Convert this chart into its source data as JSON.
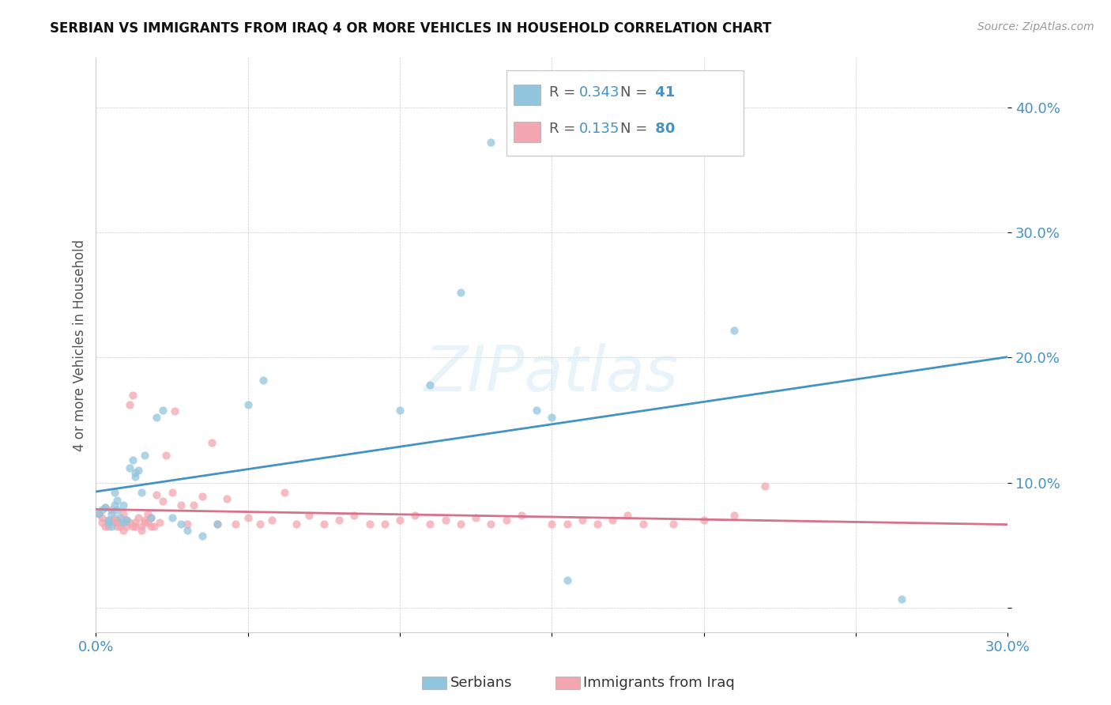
{
  "title": "SERBIAN VS IMMIGRANTS FROM IRAQ 4 OR MORE VEHICLES IN HOUSEHOLD CORRELATION CHART",
  "source": "Source: ZipAtlas.com",
  "ylabel": "4 or more Vehicles in Household",
  "xlim": [
    0.0,
    0.3
  ],
  "ylim": [
    -0.02,
    0.44
  ],
  "xticks": [
    0.0,
    0.05,
    0.1,
    0.15,
    0.2,
    0.25,
    0.3
  ],
  "yticks": [
    0.0,
    0.1,
    0.2,
    0.3,
    0.4
  ],
  "xtick_labels": [
    "0.0%",
    "",
    "",
    "",
    "",
    "",
    "30.0%"
  ],
  "ytick_labels": [
    "",
    "10.0%",
    "20.0%",
    "30.0%",
    "40.0%"
  ],
  "legend_R_serbian": "0.343",
  "legend_N_serbian": "41",
  "legend_R_iraq": "0.135",
  "legend_N_iraq": "80",
  "color_serbian": "#92C5DE",
  "color_iraq": "#F4A6B0",
  "color_serbian_line": "#4393C3",
  "color_iraq_line": "#D6728A",
  "serbian_x": [
    0.001,
    0.002,
    0.003,
    0.004,
    0.004,
    0.005,
    0.005,
    0.006,
    0.006,
    0.007,
    0.007,
    0.008,
    0.009,
    0.009,
    0.01,
    0.011,
    0.012,
    0.013,
    0.013,
    0.014,
    0.015,
    0.016,
    0.018,
    0.02,
    0.022,
    0.025,
    0.028,
    0.03,
    0.035,
    0.04,
    0.05,
    0.055,
    0.1,
    0.11,
    0.12,
    0.13,
    0.145,
    0.15,
    0.155,
    0.21,
    0.265
  ],
  "serbian_y": [
    0.075,
    0.078,
    0.08,
    0.07,
    0.068,
    0.065,
    0.075,
    0.082,
    0.092,
    0.086,
    0.078,
    0.072,
    0.082,
    0.068,
    0.07,
    0.112,
    0.118,
    0.108,
    0.105,
    0.11,
    0.092,
    0.122,
    0.072,
    0.152,
    0.158,
    0.072,
    0.067,
    0.062,
    0.057,
    0.067,
    0.162,
    0.182,
    0.158,
    0.178,
    0.252,
    0.372,
    0.158,
    0.152,
    0.022,
    0.222,
    0.007
  ],
  "iraq_x": [
    0.001,
    0.002,
    0.002,
    0.003,
    0.003,
    0.004,
    0.004,
    0.005,
    0.005,
    0.006,
    0.006,
    0.007,
    0.007,
    0.008,
    0.008,
    0.009,
    0.009,
    0.01,
    0.01,
    0.011,
    0.011,
    0.012,
    0.012,
    0.013,
    0.013,
    0.014,
    0.015,
    0.015,
    0.016,
    0.016,
    0.017,
    0.017,
    0.018,
    0.018,
    0.019,
    0.02,
    0.021,
    0.022,
    0.023,
    0.025,
    0.026,
    0.028,
    0.03,
    0.032,
    0.035,
    0.038,
    0.04,
    0.043,
    0.046,
    0.05,
    0.054,
    0.058,
    0.062,
    0.066,
    0.07,
    0.075,
    0.08,
    0.085,
    0.09,
    0.095,
    0.1,
    0.105,
    0.11,
    0.115,
    0.12,
    0.125,
    0.13,
    0.135,
    0.14,
    0.15,
    0.155,
    0.16,
    0.165,
    0.17,
    0.175,
    0.18,
    0.19,
    0.2,
    0.21,
    0.22
  ],
  "iraq_y": [
    0.075,
    0.072,
    0.068,
    0.08,
    0.065,
    0.065,
    0.07,
    0.078,
    0.07,
    0.072,
    0.068,
    0.065,
    0.07,
    0.065,
    0.068,
    0.062,
    0.075,
    0.065,
    0.07,
    0.068,
    0.162,
    0.065,
    0.17,
    0.065,
    0.068,
    0.072,
    0.062,
    0.065,
    0.07,
    0.068,
    0.075,
    0.068,
    0.072,
    0.065,
    0.065,
    0.09,
    0.068,
    0.085,
    0.122,
    0.092,
    0.157,
    0.082,
    0.067,
    0.082,
    0.089,
    0.132,
    0.067,
    0.087,
    0.067,
    0.072,
    0.067,
    0.07,
    0.092,
    0.067,
    0.074,
    0.067,
    0.07,
    0.074,
    0.067,
    0.067,
    0.07,
    0.074,
    0.067,
    0.07,
    0.067,
    0.072,
    0.067,
    0.07,
    0.074,
    0.067,
    0.067,
    0.07,
    0.067,
    0.07,
    0.074,
    0.067,
    0.067,
    0.07,
    0.074,
    0.097
  ]
}
